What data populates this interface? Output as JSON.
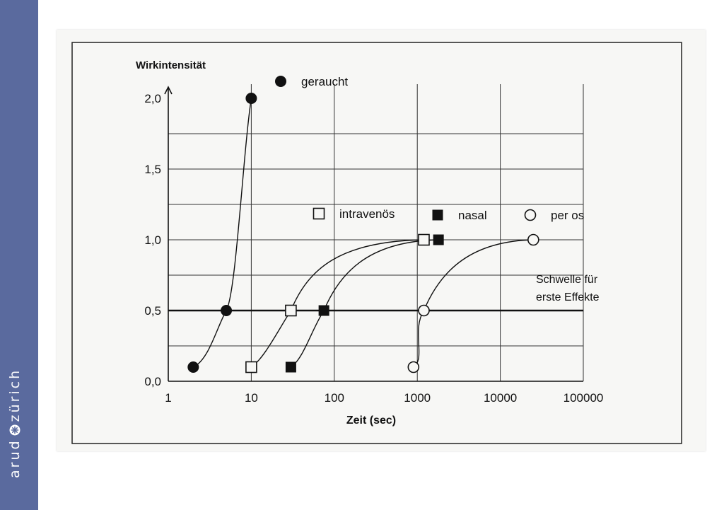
{
  "brand": {
    "part1": "arud",
    "part2": "zürich",
    "logo_icon": "asterisk-circle-icon"
  },
  "colors": {
    "sidebar": "#5a6a9e",
    "ink": "#111111"
  },
  "chart_data": {
    "type": "scatter",
    "xscale": "log",
    "xlabel": "Zeit (sec)",
    "ylabel": "Wirkintensität",
    "xlim": [
      1,
      100000
    ],
    "ylim": [
      0,
      2.0
    ],
    "xticks": [
      1,
      10,
      100,
      1000,
      10000,
      100000
    ],
    "xtick_labels": [
      "1",
      "10",
      "100",
      "1000",
      "10000",
      "100000"
    ],
    "yticks": [
      0,
      0.5,
      1.0,
      1.5,
      2.0
    ],
    "ytick_labels": [
      "0,0",
      "0,5",
      "1,0",
      "1,5",
      "2,0"
    ],
    "grid": true,
    "threshold": {
      "y": 0.5,
      "label_line1": "Schwelle für",
      "label_line2": "erste Effekte"
    },
    "series": [
      {
        "name": "geraucht",
        "marker": "filled-circle",
        "x": [
          2,
          5,
          10
        ],
        "y": [
          0.1,
          0.5,
          2.0
        ]
      },
      {
        "name": "intravenös",
        "marker": "open-square",
        "x": [
          10,
          30,
          1200
        ],
        "y": [
          0.1,
          0.5,
          1.0
        ]
      },
      {
        "name": "nasal",
        "marker": "filled-square",
        "x": [
          30,
          75,
          1800
        ],
        "y": [
          0.1,
          0.5,
          1.0
        ]
      },
      {
        "name": "per os",
        "marker": "open-circle",
        "x": [
          900,
          1200,
          25000
        ],
        "y": [
          0.1,
          0.5,
          1.0
        ]
      }
    ]
  }
}
